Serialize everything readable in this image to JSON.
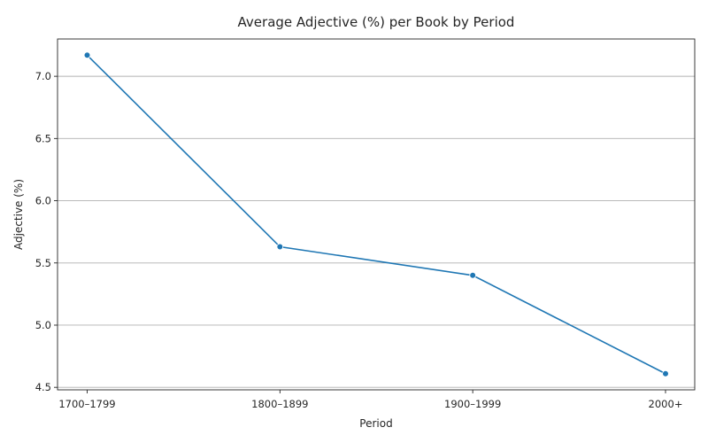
{
  "chart_data": {
    "type": "line",
    "title": "Average Adjective (%) per Book by Period",
    "xlabel": "Period",
    "ylabel": "Adjective (%)",
    "categories": [
      "1700–1799",
      "1800–1899",
      "1900–1999",
      "2000+"
    ],
    "values": [
      7.17,
      5.63,
      5.4,
      4.61
    ],
    "ylim": [
      4.48,
      7.3
    ],
    "yticks": [
      4.5,
      5.0,
      5.5,
      6.0,
      6.5,
      7.0
    ],
    "ytick_labels": [
      "4.5",
      "5.0",
      "5.5",
      "6.0",
      "6.5",
      "7.0"
    ],
    "grid": "horizontal",
    "marker": "circle",
    "color": "#1f77b4"
  }
}
